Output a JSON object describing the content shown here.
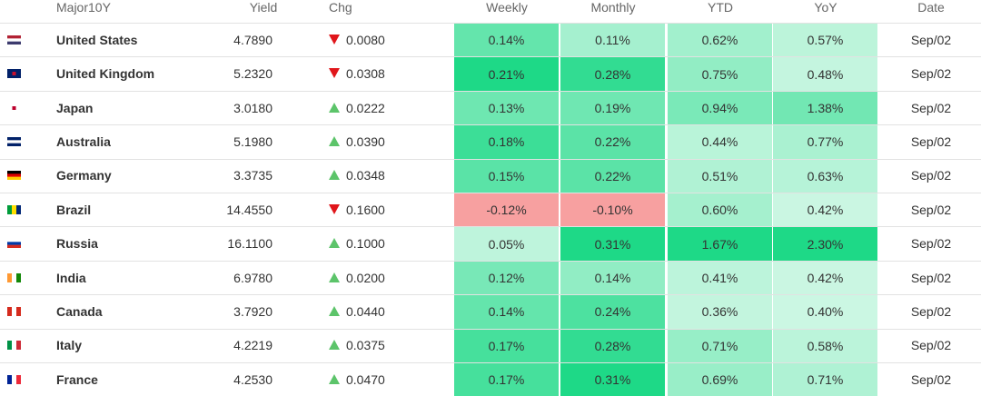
{
  "table": {
    "header": [
      "Major10Y",
      "Yield",
      "Chg",
      "Weekly",
      "Monthly",
      "YTD",
      "YoY",
      "Date"
    ],
    "rows": [
      {
        "name": "United States",
        "yield": "4.7890",
        "direction": "down",
        "chg": "0.0080",
        "weekly": "0.14%",
        "monthly": "0.11%",
        "ytd": "0.62%",
        "yoy": "0.57%",
        "date": "Sep/02"
      },
      {
        "name": "United Kingdom",
        "yield": "5.2320",
        "direction": "down",
        "chg": "0.0308",
        "weekly": "0.21%",
        "monthly": "0.28%",
        "ytd": "0.75%",
        "yoy": "0.48%",
        "date": "Sep/02"
      },
      {
        "name": "Japan",
        "yield": "3.0180",
        "direction": "up",
        "chg": "0.0222",
        "weekly": "0.13%",
        "monthly": "0.19%",
        "ytd": "0.94%",
        "yoy": "1.38%",
        "date": "Sep/02"
      },
      {
        "name": "Australia",
        "yield": "5.1980",
        "direction": "up",
        "chg": "0.0390",
        "weekly": "0.18%",
        "monthly": "0.22%",
        "ytd": "0.44%",
        "yoy": "0.77%",
        "date": "Sep/02"
      },
      {
        "name": "Germany",
        "yield": "3.3735",
        "direction": "up",
        "chg": "0.0348",
        "weekly": "0.15%",
        "monthly": "0.22%",
        "ytd": "0.51%",
        "yoy": "0.63%",
        "date": "Sep/02"
      },
      {
        "name": "Brazil",
        "yield": "14.4550",
        "direction": "down",
        "chg": "0.1600",
        "weekly": "-0.12%",
        "monthly": "-0.10%",
        "ytd": "0.60%",
        "yoy": "0.42%",
        "date": "Sep/02"
      },
      {
        "name": "Russia",
        "yield": "16.1100",
        "direction": "up",
        "chg": "0.1000",
        "weekly": "0.05%",
        "monthly": "0.31%",
        "ytd": "1.67%",
        "yoy": "2.30%",
        "date": "Sep/02"
      },
      {
        "name": "India",
        "yield": "6.9780",
        "direction": "up",
        "chg": "0.0200",
        "weekly": "0.12%",
        "monthly": "0.14%",
        "ytd": "0.41%",
        "yoy": "0.42%",
        "date": "Sep/02"
      },
      {
        "name": "Canada",
        "yield": "3.7920",
        "direction": "up",
        "chg": "0.0440",
        "weekly": "0.14%",
        "monthly": "0.24%",
        "ytd": "0.36%",
        "yoy": "0.40%",
        "date": "Sep/02"
      },
      {
        "name": "Italy",
        "yield": "4.2219",
        "direction": "up",
        "chg": "0.0375",
        "weekly": "0.17%",
        "monthly": "0.28%",
        "ytd": "0.71%",
        "yoy": "0.58%",
        "date": "Sep/02"
      },
      {
        "name": "France",
        "yield": "4.2530",
        "direction": "up",
        "chg": "0.0470",
        "weekly": "0.17%",
        "monthly": "0.31%",
        "ytd": "0.69%",
        "yoy": "0.71%",
        "date": "Sep/02"
      }
    ]
  }
}
